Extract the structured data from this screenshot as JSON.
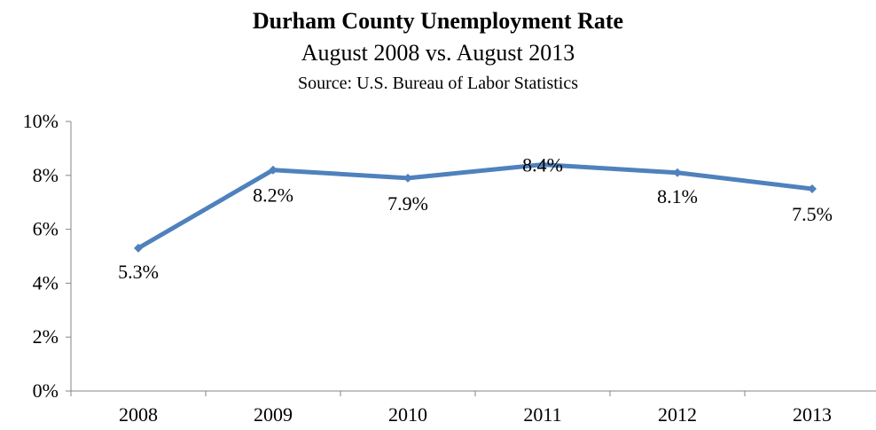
{
  "chart_data": {
    "type": "line",
    "title": "Durham County Unemployment Rate",
    "subtitle": "August 2008 vs. August 2013",
    "source": "Source: U.S. Bureau of Labor Statistics",
    "categories": [
      "2008",
      "2009",
      "2010",
      "2011",
      "2012",
      "2013"
    ],
    "series": [
      {
        "values": [
          5.3,
          8.2,
          7.9,
          8.4,
          8.1,
          7.5
        ],
        "labels": [
          "5.3%",
          "8.2%",
          "7.9%",
          "8.4%",
          "8.1%",
          "7.5%"
        ],
        "color": "#4F81BD",
        "marker": "diamond"
      }
    ],
    "ylim": [
      0,
      10
    ],
    "yticks": [
      0,
      2,
      4,
      6,
      8,
      10
    ],
    "ytick_labels": [
      "0%",
      "2%",
      "4%",
      "6%",
      "8%",
      "10%"
    ],
    "xlabel": "",
    "ylabel": "",
    "grid": false,
    "legend": false
  }
}
